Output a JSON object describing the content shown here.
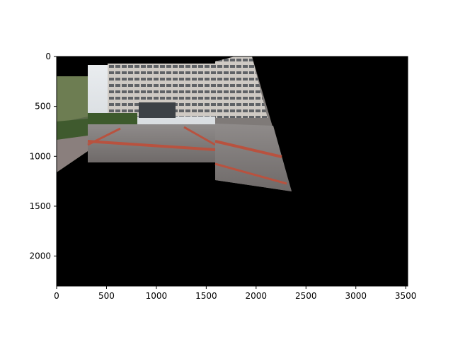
{
  "chart_data": {
    "type": "image",
    "title": "",
    "xlabel": "",
    "ylabel": "",
    "xlim": [
      0,
      3520
    ],
    "ylim": [
      2300,
      0
    ],
    "x_ticks": [
      0,
      500,
      1000,
      1500,
      2000,
      2500,
      3000,
      3500
    ],
    "y_ticks": [
      0,
      500,
      1000,
      1500,
      2000
    ],
    "x_tick_labels": [
      "0",
      "500",
      "1000",
      "1500",
      "2000",
      "2500",
      "3000",
      "3500"
    ],
    "y_tick_labels": [
      "0",
      "500",
      "1000",
      "1500",
      "2000"
    ],
    "background_color": "#000000",
    "image_content": "stitched panorama of an office building with a paved plaza and red brick paving lines",
    "image_regions": [
      {
        "name": "left-frame",
        "polygon": [
          [
            0,
            200
          ],
          [
            310,
            200
          ],
          [
            310,
            950
          ],
          [
            0,
            1160
          ]
        ]
      },
      {
        "name": "center-frame",
        "polygon": [
          [
            310,
            90
          ],
          [
            1600,
            90
          ],
          [
            1600,
            1060
          ],
          [
            310,
            1060
          ]
        ]
      },
      {
        "name": "right-frame",
        "polygon": [
          [
            1600,
            40
          ],
          [
            1950,
            0
          ],
          [
            2100,
            0
          ],
          [
            2350,
            1340
          ],
          [
            1600,
            1230
          ]
        ]
      }
    ]
  }
}
